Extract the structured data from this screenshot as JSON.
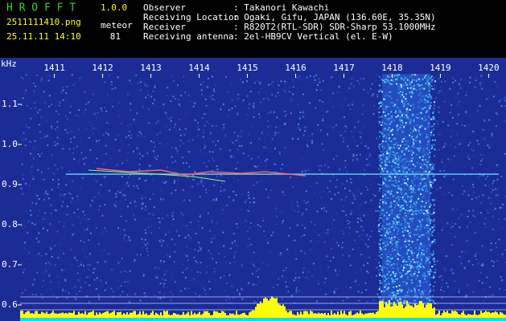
{
  "header": {
    "title": "H R O F F T",
    "version": "1.0.0",
    "file": "2511111410.png",
    "mode": "meteor",
    "datetime": "25.11.11 14:10",
    "count": 81,
    "fields": [
      {
        "label": "Observer",
        "value": ": Takanori Kawachi"
      },
      {
        "label": "Receiving Location",
        "value": ": Ogaki, Gifu, JAPAN (136.60E, 35.35N)"
      },
      {
        "label": "Receiver",
        "value": ": R820T2(RTL-SDR) SDR-Sharp 53.1000MHz"
      },
      {
        "label": "Receiving antenna",
        "value": ": 2el-HB9CV Vertical (el. E-W)"
      }
    ]
  },
  "chart_data": {
    "type": "spectrogram",
    "y_unit": "kHz",
    "xlim": [
      1410.29,
      1420.36
    ],
    "xticks": [
      1411,
      1412,
      1413,
      1414,
      1415,
      1416,
      1417,
      1418,
      1419,
      1420
    ],
    "ylim": [
      0.56,
      1.216
    ],
    "yticks": [
      1.1,
      {
        "value": 1,
        "label": "1.0"
      },
      0.9,
      0.8,
      0.7,
      0.6
    ]
  }
}
